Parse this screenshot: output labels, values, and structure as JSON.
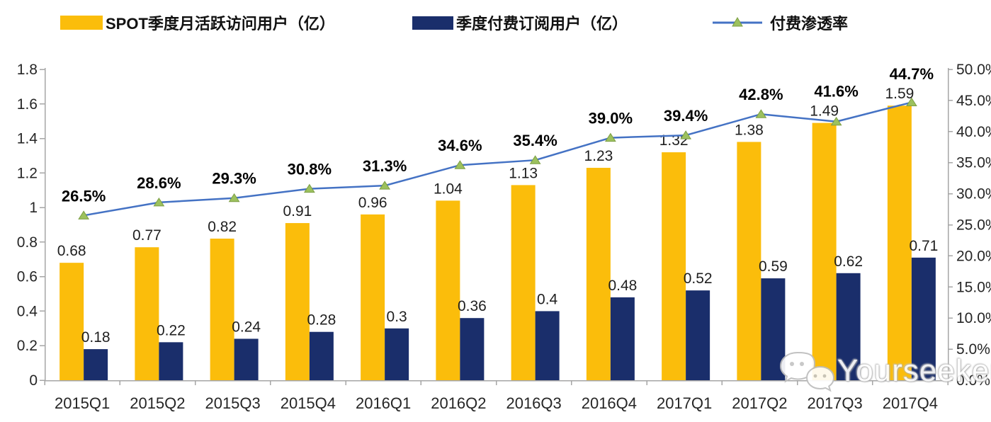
{
  "legend": {
    "items": [
      {
        "label": "SPOT季度月活跃访问用户（亿）",
        "swatch": "bar",
        "color": "#FBBD0B"
      },
      {
        "label": "季度付费订阅用户（亿）",
        "swatch": "bar",
        "color": "#1A2E6B"
      },
      {
        "label": "付费渗透率",
        "swatch": "line",
        "color": "#4472C4",
        "marker_color": "#9CC15E"
      }
    ]
  },
  "chart_data": {
    "type": "bar",
    "subtype": "combo-bar-line",
    "categories": [
      "2015Q1",
      "2015Q2",
      "2015Q3",
      "2015Q4",
      "2016Q1",
      "2016Q2",
      "2016Q3",
      "2016Q4",
      "2017Q1",
      "2017Q2",
      "2017Q3",
      "2017Q4"
    ],
    "series": [
      {
        "name": "SPOT季度月活跃访问用户（亿）",
        "type": "bar",
        "axis": "left",
        "color": "#FBBD0B",
        "values": [
          0.68,
          0.77,
          0.82,
          0.91,
          0.96,
          1.04,
          1.13,
          1.23,
          1.32,
          1.38,
          1.49,
          1.59
        ],
        "labels": [
          "0.68",
          "0.77",
          "0.82",
          "0.91",
          "0.96",
          "1.04",
          "1.13",
          "1.23",
          "1.32",
          "1.38",
          "1.49",
          "1.59"
        ]
      },
      {
        "name": "季度付费订阅用户（亿）",
        "type": "bar",
        "axis": "left",
        "color": "#1A2E6B",
        "values": [
          0.18,
          0.22,
          0.24,
          0.28,
          0.3,
          0.36,
          0.4,
          0.48,
          0.52,
          0.59,
          0.62,
          0.71
        ],
        "labels": [
          "0.18",
          "0.22",
          "0.24",
          "0.28",
          "0.3",
          "0.36",
          "0.4",
          "0.48",
          "0.52",
          "0.59",
          "0.62",
          "0.71"
        ]
      },
      {
        "name": "付费渗透率",
        "type": "line",
        "axis": "right",
        "color": "#4472C4",
        "marker": "triangle",
        "marker_color": "#9CC15E",
        "marker_stroke": "#7C9E44",
        "values": [
          26.5,
          28.6,
          29.3,
          30.8,
          31.3,
          34.6,
          35.4,
          39.0,
          39.4,
          42.8,
          41.6,
          44.7
        ],
        "labels": [
          "26.5%",
          "28.6%",
          "29.3%",
          "30.8%",
          "31.3%",
          "34.6%",
          "35.4%",
          "39.0%",
          "39.4%",
          "42.8%",
          "41.6%",
          "44.7%"
        ]
      }
    ],
    "left_axis": {
      "min": 0,
      "max": 1.8,
      "step": 0.2,
      "tick_labels": [
        "0",
        "0.2",
        "0.4",
        "0.6",
        "0.8",
        "1",
        "1.2",
        "1.4",
        "1.6",
        "1.8"
      ]
    },
    "right_axis": {
      "min": 0,
      "max": 50,
      "step": 5,
      "tick_labels": [
        "0.0%",
        "5.0%",
        "10.0%",
        "15.0%",
        "20.0%",
        "25.0%",
        "30.0%",
        "35.0%",
        "40.0%",
        "45.0%",
        "50.0%"
      ]
    },
    "grid": false,
    "legend_position": "top"
  },
  "watermark": {
    "text": "Yourseeker",
    "icon": "wechat-icon"
  }
}
